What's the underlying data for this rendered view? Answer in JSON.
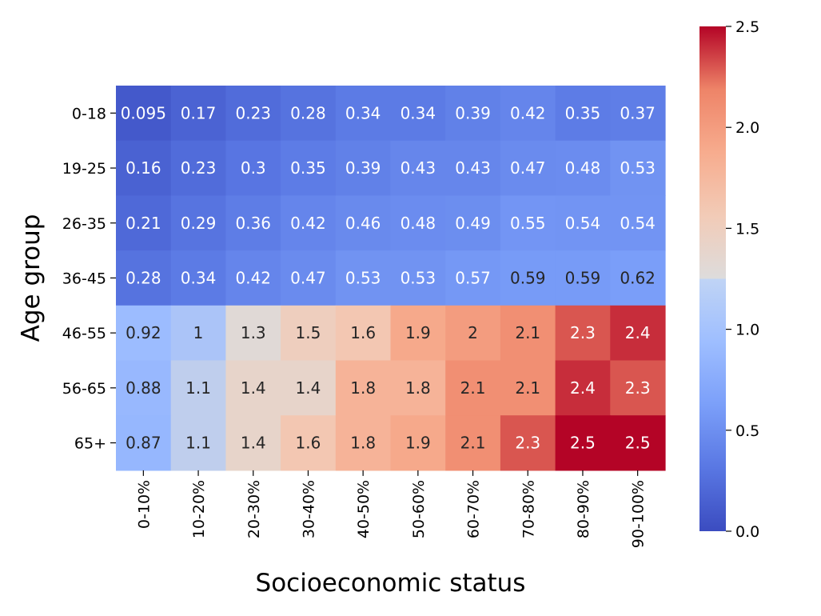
{
  "chart_data": {
    "type": "heatmap",
    "title": "",
    "xlabel": "Socioeconomic status",
    "ylabel": "Age group",
    "x_categories": [
      "0-10%",
      "10-20%",
      "20-30%",
      "30-40%",
      "40-50%",
      "50-60%",
      "60-70%",
      "70-80%",
      "80-90%",
      "90-100%"
    ],
    "y_categories": [
      "0-18",
      "19-25",
      "26-35",
      "36-45",
      "46-55",
      "56-65",
      "65+"
    ],
    "values": [
      [
        0.095,
        0.17,
        0.23,
        0.28,
        0.34,
        0.34,
        0.39,
        0.42,
        0.35,
        0.37
      ],
      [
        0.16,
        0.23,
        0.3,
        0.35,
        0.39,
        0.43,
        0.43,
        0.47,
        0.48,
        0.53
      ],
      [
        0.21,
        0.29,
        0.36,
        0.42,
        0.46,
        0.48,
        0.49,
        0.55,
        0.54,
        0.54
      ],
      [
        0.28,
        0.34,
        0.42,
        0.47,
        0.53,
        0.53,
        0.57,
        0.59,
        0.59,
        0.62
      ],
      [
        0.92,
        1,
        1.3,
        1.5,
        1.6,
        1.9,
        2,
        2.1,
        2.3,
        2.4
      ],
      [
        0.88,
        1.1,
        1.4,
        1.4,
        1.8,
        1.8,
        2.1,
        2.1,
        2.4,
        2.3
      ],
      [
        0.87,
        1.1,
        1.4,
        1.6,
        1.8,
        1.9,
        2.1,
        2.3,
        2.5,
        2.5
      ]
    ],
    "cell_labels": [
      [
        "0.095",
        "0.17",
        "0.23",
        "0.28",
        "0.34",
        "0.34",
        "0.39",
        "0.42",
        "0.35",
        "0.37"
      ],
      [
        "0.16",
        "0.23",
        "0.3",
        "0.35",
        "0.39",
        "0.43",
        "0.43",
        "0.47",
        "0.48",
        "0.53"
      ],
      [
        "0.21",
        "0.29",
        "0.36",
        "0.42",
        "0.46",
        "0.48",
        "0.49",
        "0.55",
        "0.54",
        "0.54"
      ],
      [
        "0.28",
        "0.34",
        "0.42",
        "0.47",
        "0.53",
        "0.53",
        "0.57",
        "0.59",
        "0.59",
        "0.62"
      ],
      [
        "0.92",
        "1",
        "1.3",
        "1.5",
        "1.6",
        "1.9",
        "2",
        "2.1",
        "2.3",
        "2.4"
      ],
      [
        "0.88",
        "1.1",
        "1.4",
        "1.4",
        "1.8",
        "1.8",
        "2.1",
        "2.1",
        "2.4",
        "2.3"
      ],
      [
        "0.87",
        "1.1",
        "1.4",
        "1.6",
        "1.8",
        "1.9",
        "2.1",
        "2.3",
        "2.5",
        "2.5"
      ]
    ],
    "colormap": "coolwarm",
    "vmin": 0.0,
    "vmax": 2.5,
    "colorbar_ticks": [
      0.0,
      0.5,
      1.0,
      1.5,
      2.0,
      2.5
    ],
    "colorbar_tick_labels": [
      "0.0",
      "0.5",
      "1.0",
      "1.5",
      "2.0",
      "2.5"
    ],
    "colorbar_placement": "right",
    "grid": false
  }
}
